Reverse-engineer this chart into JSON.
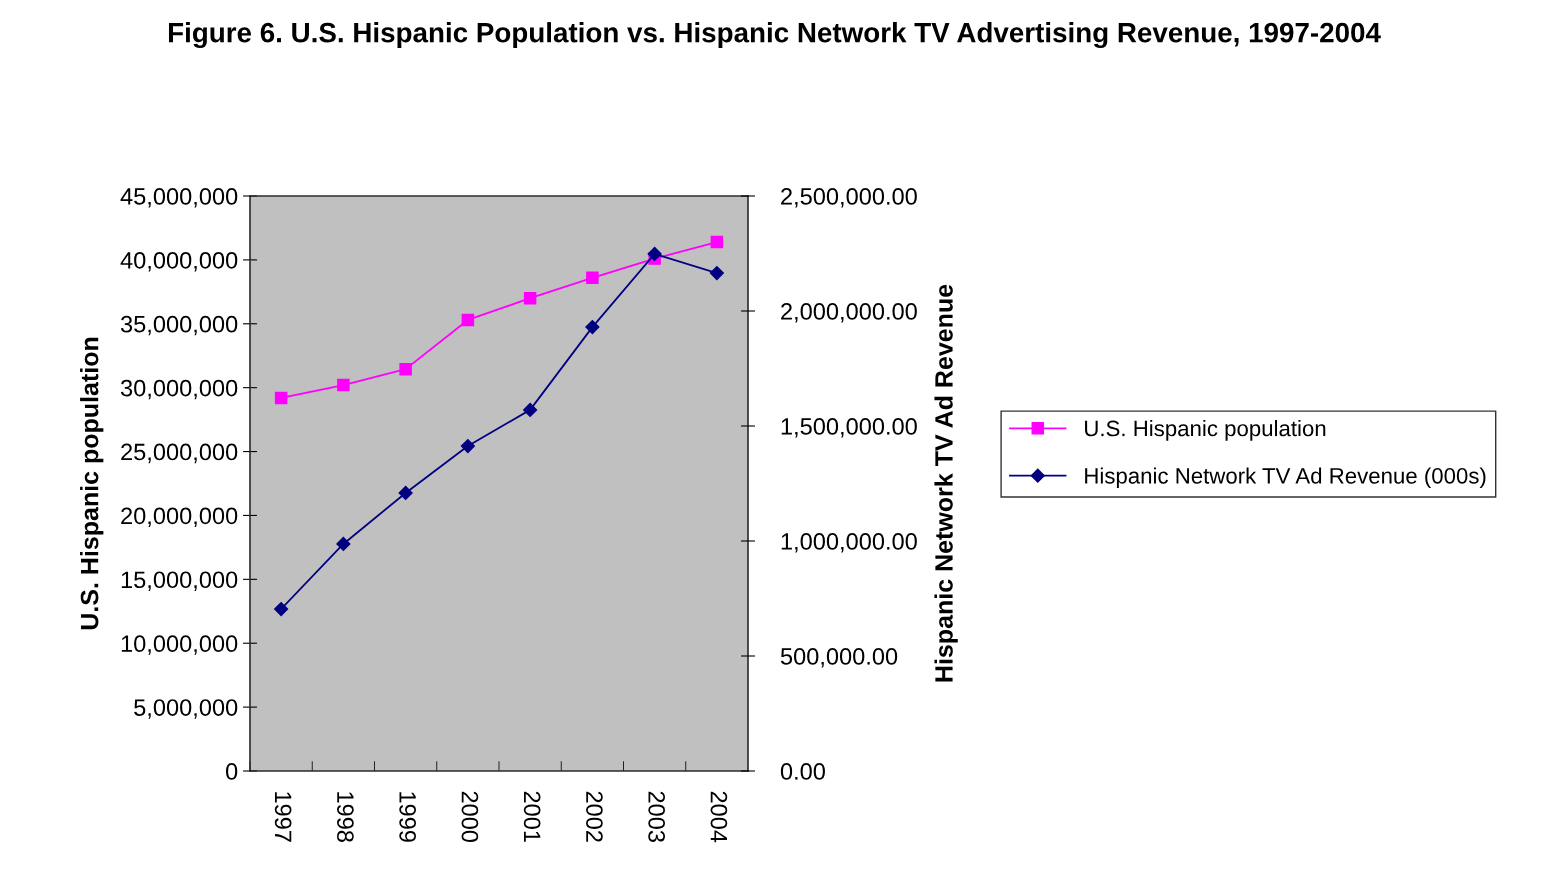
{
  "chart_data": {
    "type": "line",
    "title": "Figure 6. U.S. Hispanic Population vs. Hispanic Network TV Advertising Revenue, 1997-2004",
    "ylabel": "U.S. Hispanic population",
    "y2label": "Hispanic Network TV Ad Revenue",
    "categories": [
      "1997",
      "1998",
      "1999",
      "2000",
      "2001",
      "2002",
      "2003",
      "2004"
    ],
    "series": [
      {
        "name": "U.S. Hispanic population",
        "color": "#ff00ff",
        "marker": "square",
        "values": [
          29200000,
          30200000,
          31450000,
          35300000,
          37000000,
          38600000,
          40100000,
          41400000
        ]
      },
      {
        "name": "Hispanic Network TV Ad Revenue (000s)",
        "color": "#000080",
        "marker": "diamond",
        "axis": "y2",
        "values": [
          704000,
          987000,
          1209000,
          1413000,
          1570000,
          1930000,
          2248000,
          2165000
        ]
      }
    ],
    "ylim": [
      0,
      45000000
    ],
    "yticks": [
      {
        "value": 0,
        "label": "0"
      },
      {
        "value": 5000000,
        "label": "5,000,000"
      },
      {
        "value": 10000000,
        "label": "10,000,000"
      },
      {
        "value": 15000000,
        "label": "15,000,000"
      },
      {
        "value": 20000000,
        "label": "20,000,000"
      },
      {
        "value": 25000000,
        "label": "25,000,000"
      },
      {
        "value": 30000000,
        "label": "30,000,000"
      },
      {
        "value": 35000000,
        "label": "35,000,000"
      },
      {
        "value": 40000000,
        "label": "40,000,000"
      },
      {
        "value": 45000000,
        "label": "45,000,000"
      }
    ],
    "y2lim": [
      0,
      2500000
    ],
    "y2ticks": [
      {
        "value": 0,
        "label": "0.00"
      },
      {
        "value": 500000,
        "label": "500,000.00"
      },
      {
        "value": 1000000,
        "label": "1,000,000.00"
      },
      {
        "value": 1500000,
        "label": "1,500,000.00"
      },
      {
        "value": 2000000,
        "label": "2,000,000.00"
      },
      {
        "value": 2500000,
        "label": "2,500,000.00"
      }
    ],
    "grid": false,
    "legend": "right",
    "line_style": "solid"
  }
}
